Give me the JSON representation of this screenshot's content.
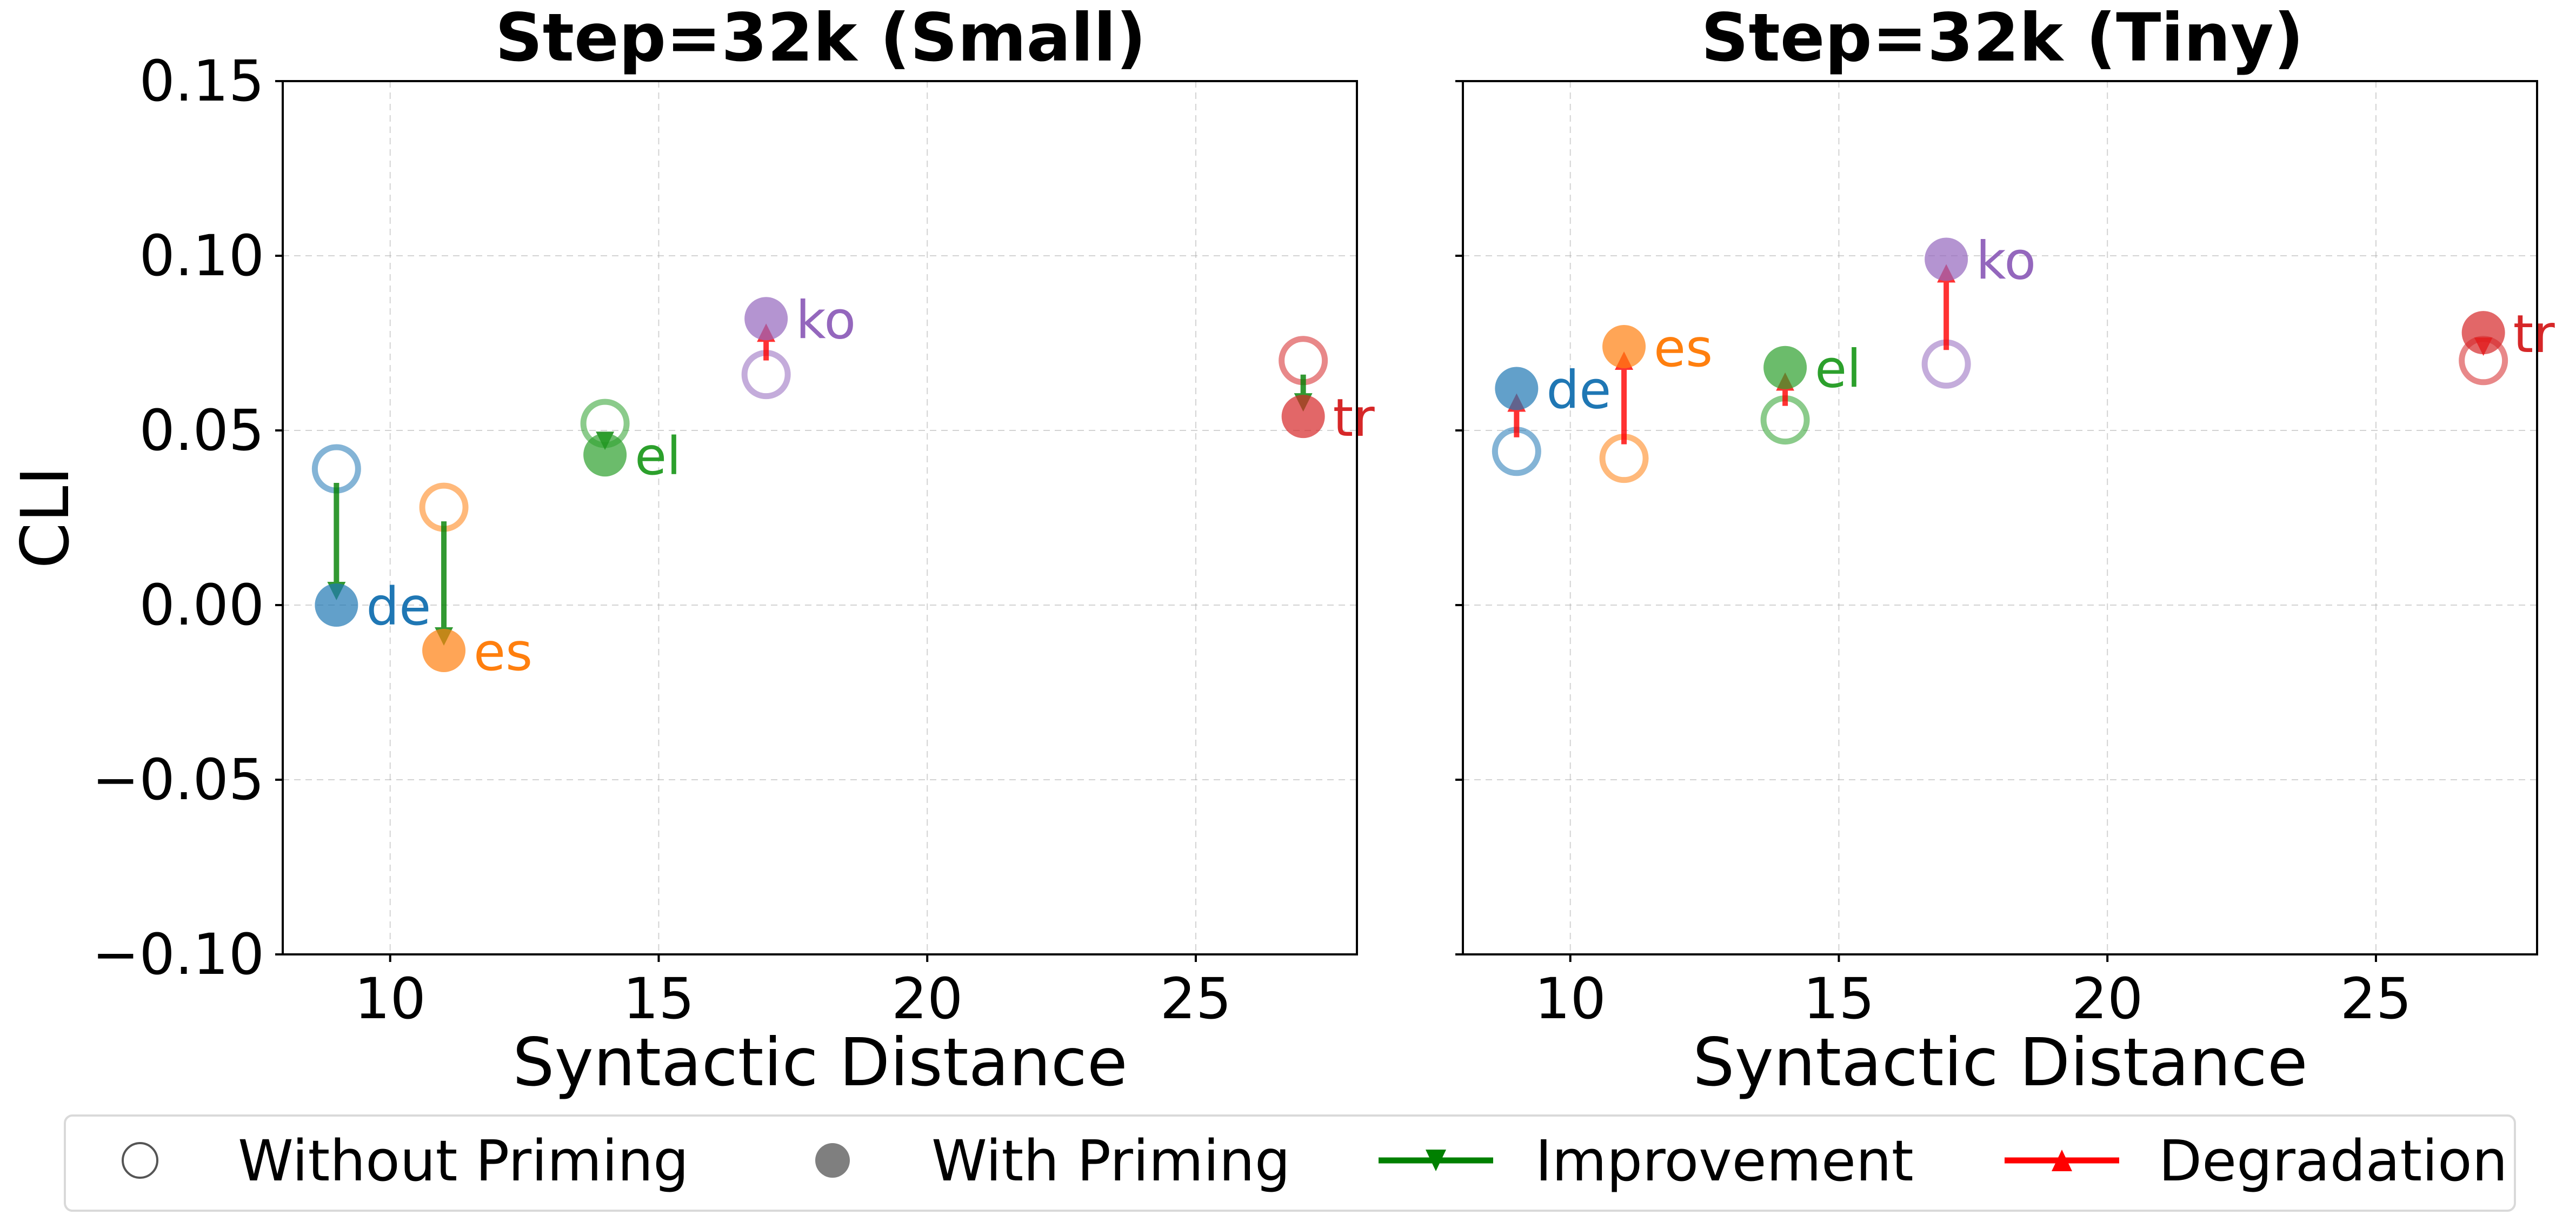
{
  "legend": {
    "without_priming": "Without Priming",
    "with_priming": "With Priming",
    "improvement": "Improvement",
    "degradation": "Degradation"
  },
  "colors": {
    "de": "#1f77b4",
    "es": "#ff7f0e",
    "el": "#2ca02c",
    "ko": "#9467bd",
    "tr": "#d62728",
    "improvement": "#008000",
    "degradation": "#ff0000"
  },
  "chart_data": [
    {
      "type": "scatter",
      "title": "Step=32k (Small)",
      "xlabel": "Syntactic Distance",
      "ylabel": "CLI",
      "xlim": [
        8,
        28
      ],
      "ylim": [
        -0.1,
        0.15
      ],
      "xticks": [
        "10",
        "15",
        "20",
        "25"
      ],
      "yticks": [
        "0.15",
        "0.10",
        "0.05",
        "0.00",
        "−0.05",
        "−0.10"
      ],
      "grid": true,
      "points": [
        {
          "lang": "de",
          "x": 9,
          "without_priming": 0.039,
          "with_priming": 0.0
        },
        {
          "lang": "es",
          "x": 11,
          "without_priming": 0.028,
          "with_priming": -0.013
        },
        {
          "lang": "el",
          "x": 14,
          "without_priming": 0.052,
          "with_priming": 0.043
        },
        {
          "lang": "ko",
          "x": 17,
          "without_priming": 0.066,
          "with_priming": 0.082
        },
        {
          "lang": "tr",
          "x": 27,
          "without_priming": 0.07,
          "with_priming": 0.054
        }
      ]
    },
    {
      "type": "scatter",
      "title": "Step=32k (Tiny)",
      "xlabel": "Syntactic Distance",
      "ylabel": "",
      "xlim": [
        8,
        28
      ],
      "ylim": [
        -0.1,
        0.15
      ],
      "xticks": [
        "10",
        "15",
        "20",
        "25"
      ],
      "yticks": [],
      "grid": true,
      "points": [
        {
          "lang": "de",
          "x": 9,
          "without_priming": 0.044,
          "with_priming": 0.062
        },
        {
          "lang": "es",
          "x": 11,
          "without_priming": 0.042,
          "with_priming": 0.074
        },
        {
          "lang": "el",
          "x": 14,
          "without_priming": 0.053,
          "with_priming": 0.068
        },
        {
          "lang": "ko",
          "x": 17,
          "without_priming": 0.069,
          "with_priming": 0.099
        },
        {
          "lang": "tr",
          "x": 27,
          "without_priming": 0.07,
          "with_priming": 0.078
        }
      ]
    }
  ]
}
